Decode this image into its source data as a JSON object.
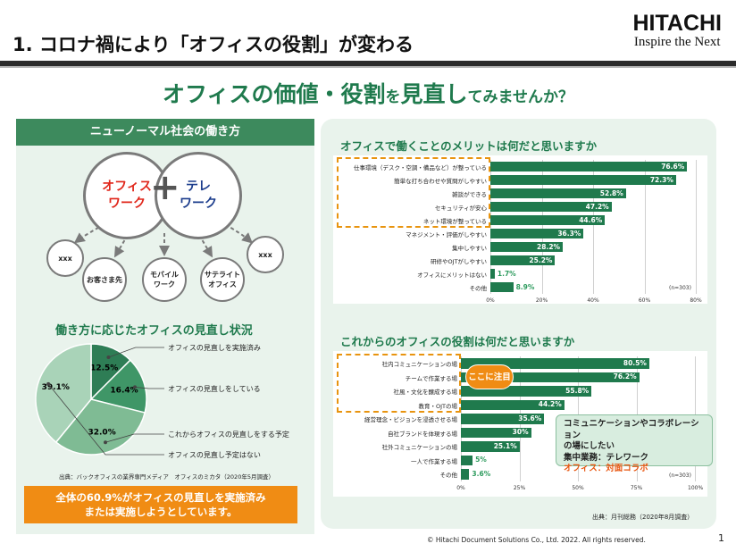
{
  "slide": {
    "title": "1. コロナ禍により「オフィスの役割」が変わる",
    "brand_name": "HITACHI",
    "brand_tagline": "Inspire the Next",
    "headline_big_1": "オフィスの価値・役割",
    "headline_small_1": "を",
    "headline_big_2": "見直し",
    "headline_small_2": "てみませんか？"
  },
  "left": {
    "header": "ニューノーマル社会の働き方",
    "circle_office": "オフィス\nワーク",
    "plus": "+",
    "circle_tele": "テレ\nワーク",
    "bubbles": [
      "xxx",
      "お客さま先",
      "モバイル\nワーク",
      "サテライト\nオフィス",
      "xxx"
    ],
    "section_title": "働き方に応じたオフィスの見直し状況",
    "pie": [
      {
        "label": "オフィスの見直しを実施済み",
        "value": 12.5,
        "pct": "12.5%",
        "color": "#2e7d55"
      },
      {
        "label": "オフィスの見直しをしている",
        "value": 16.4,
        "pct": "16.4%",
        "color": "#3f9667"
      },
      {
        "label": "これからオフィスの見直しをする予定",
        "value": 32.0,
        "pct": "32.0%",
        "color": "#7fbb94"
      },
      {
        "label": "オフィスの見直し予定はない",
        "value": 39.1,
        "pct": "39.1%",
        "color": "#a9d3b8"
      }
    ],
    "source": "出典：バックオフィスの業界専門メディア　オフィスのミカタ（2020年5月調査）",
    "callout_line1": "全体の60.9%がオフィスの見直しを実施済み",
    "callout_line2": "または実施しようとしています。"
  },
  "chart_data": [
    {
      "type": "bar",
      "title": "オフィスで働くことのメリットは何だと思いますか",
      "orientation": "horizontal",
      "categories": [
        "仕事環境（デスク・空調・備品など）が整っている",
        "簡単な打ち合わせや質問がしやすい",
        "雑談ができる",
        "セキュリティが安心",
        "ネット環境が整っている",
        "マネジメント・評価がしやすい",
        "集中しやすい",
        "研修やOJTがしやすい",
        "オフィスにメリットはない",
        "その他"
      ],
      "values": [
        76.6,
        72.3,
        52.8,
        47.2,
        44.6,
        36.3,
        28.2,
        25.2,
        1.7,
        8.9
      ],
      "value_labels": [
        "76.6%",
        "72.3%",
        "52.8%",
        "47.2%",
        "44.6%",
        "36.3%",
        "28.2%",
        "25.2%",
        "1.7%",
        "8.9%"
      ],
      "xlim": [
        0,
        80
      ],
      "ticks": [
        "0%",
        "20%",
        "40%",
        "60%",
        "80%"
      ],
      "note": "(n=303)",
      "highlighted_first": 5
    },
    {
      "type": "bar",
      "title": "これからのオフィスの役割は何だと思いますか",
      "orientation": "horizontal",
      "categories": [
        "社内コミュニケーションの場",
        "チームで作業する場",
        "社風・文化を醸成する場",
        "教育・OJTの場",
        "経営理念・ビジョンを浸透させる場",
        "自社ブランドを体現する場",
        "社外コミュニケーションの場",
        "一人で作業する場",
        "その他"
      ],
      "values": [
        80.5,
        76.2,
        55.8,
        44.2,
        35.6,
        30,
        25.1,
        5,
        3.6
      ],
      "value_labels": [
        "80.5%",
        "76.2%",
        "55.8%",
        "44.2%",
        "35.6%",
        "30%",
        "25.1%",
        "5%",
        "3.6%"
      ],
      "xlim": [
        0,
        100
      ],
      "ticks": [
        "0%",
        "25%",
        "50%",
        "75%",
        "100%"
      ],
      "note": "(n=303)",
      "highlighted_first": 4
    }
  ],
  "right": {
    "focus_badge": "ここに注目",
    "collab_line1": "コミュニケーションやコラボレーション",
    "collab_line2": "の場にしたい",
    "collab_line3": "集中業務：テレワーク",
    "collab_line4": "オフィス：対面コラボ",
    "source": "出典：月刊総務（2020年8月調査）"
  },
  "footer": {
    "copyright": "© Hitachi Document Solutions Co., Ltd. 2022. All rights reserved.",
    "page": "1"
  }
}
